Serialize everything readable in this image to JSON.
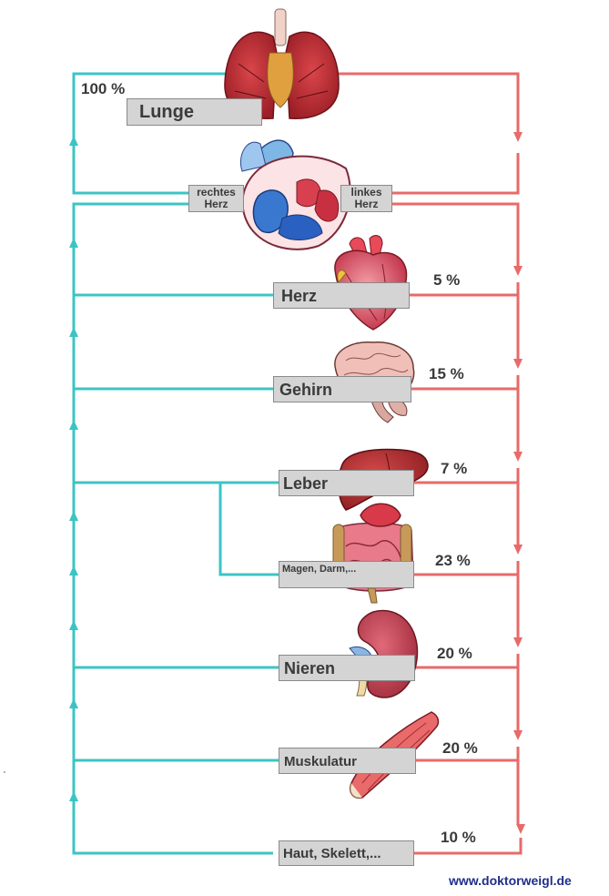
{
  "colors": {
    "venous": "#3cc4c4",
    "arterial": "#e86a6a",
    "label_bg": "#d4d4d4",
    "footer": "#1f2e8a"
  },
  "lung": {
    "label": "Lunge",
    "percent": "100 %"
  },
  "heart_chambers": {
    "right": [
      "rechtes",
      "Herz"
    ],
    "left": [
      "linkes",
      "Herz"
    ]
  },
  "organs": [
    {
      "id": "herz",
      "label": "Herz",
      "percent": "5 %",
      "icon": "heart-icon"
    },
    {
      "id": "gehirn",
      "label": "Gehirn",
      "percent": "15 %",
      "icon": "brain-icon"
    },
    {
      "id": "leber",
      "label": "Leber",
      "percent": "7 %",
      "icon": "liver-icon"
    },
    {
      "id": "magen-darm",
      "label": "Magen, Darm,...",
      "percent": "23 %",
      "icon": "stomach-intestine-icon"
    },
    {
      "id": "nieren",
      "label": "Nieren",
      "percent": "20 %",
      "icon": "kidney-icon"
    },
    {
      "id": "muskulatur",
      "label": "Muskulatur",
      "percent": "20 %",
      "icon": "muscle-icon"
    },
    {
      "id": "haut-skelett",
      "label": "Haut, Skelett,...",
      "percent": "10 %",
      "icon": "skin-skeleton-icon"
    }
  ],
  "footer": "www.doktorweigl.de"
}
